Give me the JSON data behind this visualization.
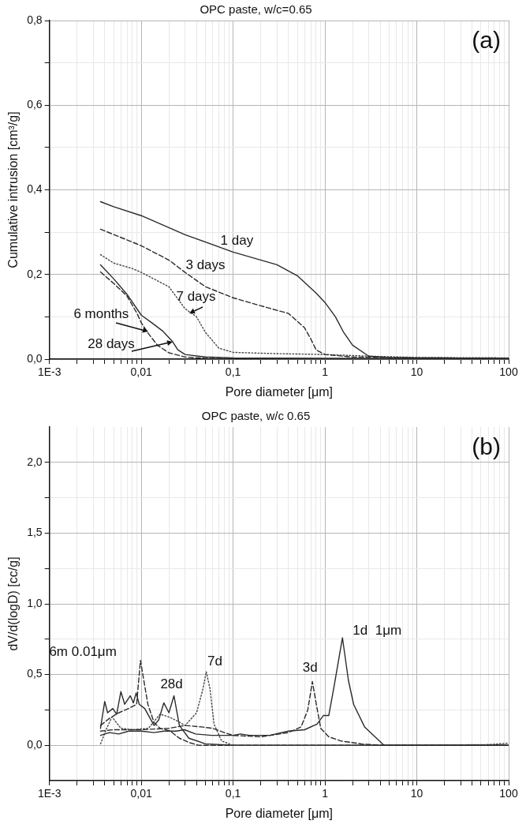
{
  "chart_data": [
    {
      "type": "line",
      "title": "OPC paste, w/c=0.65",
      "xlabel": "Pore diameter [μm]",
      "ylabel": "Cumulative intrusion [cm³/g]",
      "log": "x",
      "grid": true,
      "marker": "none",
      "xlim": [
        0.001,
        100
      ],
      "ylim": [
        0,
        0.8
      ],
      "xticks": [
        {
          "value": 0.001,
          "label": "1E-3"
        },
        {
          "value": 0.002,
          "label": null
        },
        {
          "value": 0.003,
          "label": null
        },
        {
          "value": 0.004,
          "label": null
        },
        {
          "value": 0.005,
          "label": null
        },
        {
          "value": 0.006,
          "label": null
        },
        {
          "value": 0.007,
          "label": null
        },
        {
          "value": 0.008,
          "label": null
        },
        {
          "value": 0.009,
          "label": null
        },
        {
          "value": 0.01,
          "label": "0,01"
        },
        {
          "value": 0.02,
          "label": null
        },
        {
          "value": 0.03,
          "label": null
        },
        {
          "value": 0.04,
          "label": null
        },
        {
          "value": 0.05,
          "label": null
        },
        {
          "value": 0.06,
          "label": null
        },
        {
          "value": 0.07,
          "label": null
        },
        {
          "value": 0.08,
          "label": null
        },
        {
          "value": 0.09,
          "label": null
        },
        {
          "value": 0.1,
          "label": "0,1"
        },
        {
          "value": 0.2,
          "label": null
        },
        {
          "value": 0.3,
          "label": null
        },
        {
          "value": 0.4,
          "label": null
        },
        {
          "value": 0.5,
          "label": null
        },
        {
          "value": 0.6,
          "label": null
        },
        {
          "value": 0.7,
          "label": null
        },
        {
          "value": 0.8,
          "label": null
        },
        {
          "value": 0.9,
          "label": null
        },
        {
          "value": 1,
          "label": "1"
        },
        {
          "value": 2,
          "label": null
        },
        {
          "value": 3,
          "label": null
        },
        {
          "value": 4,
          "label": null
        },
        {
          "value": 5,
          "label": null
        },
        {
          "value": 6,
          "label": null
        },
        {
          "value": 7,
          "label": null
        },
        {
          "value": 8,
          "label": null
        },
        {
          "value": 9,
          "label": null
        },
        {
          "value": 10,
          "label": "10"
        },
        {
          "value": 20,
          "label": null
        },
        {
          "value": 30,
          "label": null
        },
        {
          "value": 40,
          "label": null
        },
        {
          "value": 50,
          "label": null
        },
        {
          "value": 60,
          "label": null
        },
        {
          "value": 70,
          "label": null
        },
        {
          "value": 80,
          "label": null
        },
        {
          "value": 90,
          "label": null
        },
        {
          "value": 100,
          "label": "100"
        }
      ],
      "yticks": [
        {
          "value": 0,
          "label": "0,0"
        },
        {
          "value": 0.1,
          "label": null
        },
        {
          "value": 0.2,
          "label": "0,2"
        },
        {
          "value": 0.3,
          "label": null
        },
        {
          "value": 0.4,
          "label": "0,4"
        },
        {
          "value": 0.5,
          "label": null
        },
        {
          "value": 0.6,
          "label": "0,6"
        },
        {
          "value": 0.7,
          "label": null
        },
        {
          "value": 0.8,
          "label": "0,8"
        }
      ],
      "series": [
        {
          "color": "#2b2b2b",
          "line_style": "solid",
          "x": [
            0.0036,
            0.005,
            0.01,
            0.03,
            0.1,
            0.3,
            0.5,
            0.8,
            1,
            1.3,
            1.6,
            2,
            3,
            5,
            10,
            100
          ],
          "values": [
            0.372,
            0.36,
            0.339,
            0.294,
            0.253,
            0.223,
            0.197,
            0.156,
            0.134,
            0.1,
            0.063,
            0.033,
            0.007,
            0.004,
            0.003,
            0.002
          ]
        },
        {
          "color": "#2b2b2b",
          "line_style": "dashed",
          "x": [
            0.0036,
            0.01,
            0.02,
            0.03,
            0.05,
            0.1,
            0.2,
            0.4,
            0.6,
            0.7,
            0.8,
            1,
            2,
            10,
            100
          ],
          "values": [
            0.307,
            0.268,
            0.234,
            0.205,
            0.171,
            0.145,
            0.126,
            0.108,
            0.074,
            0.048,
            0.022,
            0.011,
            0.005,
            0.003,
            0.002
          ]
        },
        {
          "color": "#444444",
          "line_style": "dotted",
          "x": [
            0.0036,
            0.005,
            0.008,
            0.01,
            0.02,
            0.03,
            0.04,
            0.05,
            0.07,
            0.1,
            0.3,
            1,
            3,
            10,
            100
          ],
          "values": [
            0.247,
            0.227,
            0.214,
            0.205,
            0.171,
            0.119,
            0.1,
            0.063,
            0.026,
            0.016,
            0.013,
            0.011,
            0.007,
            0.004,
            0.003
          ]
        },
        {
          "color": "#2b2b2b",
          "line_style": "solid",
          "x": [
            0.0036,
            0.005,
            0.007,
            0.01,
            0.013,
            0.017,
            0.022,
            0.025,
            0.03,
            0.05,
            0.1,
            1,
            100
          ],
          "values": [
            0.223,
            0.19,
            0.153,
            0.104,
            0.086,
            0.067,
            0.041,
            0.022,
            0.011,
            0.005,
            0.003,
            0.002,
            0.001
          ]
        },
        {
          "color": "#2b2b2b",
          "line_style": "dashed",
          "x": [
            0.0036,
            0.005,
            0.007,
            0.009,
            0.01,
            0.012,
            0.015,
            0.02,
            0.03,
            0.05,
            1,
            100
          ],
          "values": [
            0.206,
            0.179,
            0.149,
            0.108,
            0.086,
            0.06,
            0.033,
            0.015,
            0.005,
            0.002,
            0.001,
            0.001
          ]
        }
      ],
      "annotations": [
        "(a)",
        {
          "text": "1 day",
          "x": 0.11,
          "y": 0.25
        },
        {
          "text": "3 days",
          "x": 0.05,
          "y": 0.17
        },
        {
          "text": "7 days",
          "x": 0.033,
          "y": 0.108
        },
        {
          "text": "6 months",
          "x": 0.012,
          "y": 0.065
        },
        {
          "text": "28 days",
          "x": 0.022,
          "y": 0.041
        }
      ]
    },
    {
      "type": "line",
      "title": "OPC paste, w/c 0.65",
      "xlabel": "Pore diameter [μm]",
      "ylabel": "dV/d(logD) [cc/g]",
      "log": "x",
      "grid": true,
      "marker": "none",
      "xlim": [
        0.001,
        100
      ],
      "ylim": [
        -0.25,
        2.25
      ],
      "xticks": [
        {
          "value": 0.001,
          "label": "1E-3"
        },
        {
          "value": 0.002,
          "label": null
        },
        {
          "value": 0.003,
          "label": null
        },
        {
          "value": 0.004,
          "label": null
        },
        {
          "value": 0.005,
          "label": null
        },
        {
          "value": 0.006,
          "label": null
        },
        {
          "value": 0.007,
          "label": null
        },
        {
          "value": 0.008,
          "label": null
        },
        {
          "value": 0.009,
          "label": null
        },
        {
          "value": 0.01,
          "label": "0,01"
        },
        {
          "value": 0.02,
          "label": null
        },
        {
          "value": 0.03,
          "label": null
        },
        {
          "value": 0.04,
          "label": null
        },
        {
          "value": 0.05,
          "label": null
        },
        {
          "value": 0.06,
          "label": null
        },
        {
          "value": 0.07,
          "label": null
        },
        {
          "value": 0.08,
          "label": null
        },
        {
          "value": 0.09,
          "label": null
        },
        {
          "value": 0.1,
          "label": "0,1"
        },
        {
          "value": 0.2,
          "label": null
        },
        {
          "value": 0.3,
          "label": null
        },
        {
          "value": 0.4,
          "label": null
        },
        {
          "value": 0.5,
          "label": null
        },
        {
          "value": 0.6,
          "label": null
        },
        {
          "value": 0.7,
          "label": null
        },
        {
          "value": 0.8,
          "label": null
        },
        {
          "value": 0.9,
          "label": null
        },
        {
          "value": 1,
          "label": "1"
        },
        {
          "value": 2,
          "label": null
        },
        {
          "value": 3,
          "label": null
        },
        {
          "value": 4,
          "label": null
        },
        {
          "value": 5,
          "label": null
        },
        {
          "value": 6,
          "label": null
        },
        {
          "value": 7,
          "label": null
        },
        {
          "value": 8,
          "label": null
        },
        {
          "value": 9,
          "label": null
        },
        {
          "value": 10,
          "label": "10"
        },
        {
          "value": 20,
          "label": null
        },
        {
          "value": 30,
          "label": null
        },
        {
          "value": 40,
          "label": null
        },
        {
          "value": 50,
          "label": null
        },
        {
          "value": 60,
          "label": null
        },
        {
          "value": 70,
          "label": null
        },
        {
          "value": 80,
          "label": null
        },
        {
          "value": 90,
          "label": null
        },
        {
          "value": 100,
          "label": "100"
        }
      ],
      "yticks": [
        {
          "value": 0,
          "label": "0,0"
        },
        {
          "value": 0.25,
          "label": null
        },
        {
          "value": 0.5,
          "label": "0,5"
        },
        {
          "value": 0.75,
          "label": null
        },
        {
          "value": 1,
          "label": "1,0"
        },
        {
          "value": 1.25,
          "label": null
        },
        {
          "value": 1.5,
          "label": "1,5"
        },
        {
          "value": 1.75,
          "label": null
        },
        {
          "value": 2,
          "label": "2,0"
        }
      ],
      "series": [
        {
          "color": "#2b2b2b",
          "line_style": "solid",
          "x": [
            0.0036,
            0.0045,
            0.0057,
            0.0073,
            0.01,
            0.0138,
            0.0176,
            0.024,
            0.0296,
            0.039,
            0.058,
            0.1,
            0.12,
            0.15,
            0.25,
            0.4,
            0.6,
            0.82,
            0.96,
            1.1,
            1.26,
            1.55,
            1.8,
            2.05,
            2.7,
            4.4,
            10,
            100
          ],
          "values": [
            0.07,
            0.09,
            0.08,
            0.1,
            0.1,
            0.09,
            0.1,
            0.1,
            0.11,
            0.08,
            0.07,
            0.07,
            0.08,
            0.07,
            0.07,
            0.1,
            0.11,
            0.15,
            0.21,
            0.21,
            0.42,
            0.76,
            0.46,
            0.29,
            0.13,
            0.0,
            0.0,
            0.0
          ]
        },
        {
          "color": "#2b2b2b",
          "line_style": "dashed",
          "x": [
            0.0036,
            0.005,
            0.01,
            0.02,
            0.03,
            0.045,
            0.06,
            0.08,
            0.1,
            0.2,
            0.4,
            0.55,
            0.65,
            0.73,
            0.8,
            0.9,
            1.1,
            1.5,
            2.5,
            4,
            100
          ],
          "values": [
            0.1,
            0.11,
            0.11,
            0.12,
            0.14,
            0.13,
            0.12,
            0.09,
            0.07,
            0.06,
            0.09,
            0.13,
            0.25,
            0.45,
            0.3,
            0.12,
            0.06,
            0.03,
            0.01,
            0.0,
            0.0
          ]
        },
        {
          "color": "#444444",
          "line_style": "dotted",
          "x": [
            0.0036,
            0.0042,
            0.0048,
            0.006,
            0.008,
            0.012,
            0.016,
            0.02,
            0.025,
            0.03,
            0.04,
            0.047,
            0.051,
            0.056,
            0.062,
            0.075,
            0.1,
            1,
            10,
            60,
            100
          ],
          "values": [
            0.01,
            0.12,
            0.2,
            0.12,
            0.11,
            0.12,
            0.22,
            0.2,
            0.17,
            0.14,
            0.23,
            0.4,
            0.52,
            0.4,
            0.15,
            0.03,
            0.0,
            0.0,
            0.0,
            0.005,
            0.015
          ]
        },
        {
          "color": "#2b2b2b",
          "line_style": "solid",
          "x": [
            0.0036,
            0.004,
            0.0043,
            0.0049,
            0.0054,
            0.006,
            0.0066,
            0.0076,
            0.0082,
            0.0088,
            0.0095,
            0.0109,
            0.0138,
            0.0155,
            0.0176,
            0.02,
            0.0227,
            0.026,
            0.033,
            0.05,
            0.1,
            100
          ],
          "values": [
            0.12,
            0.31,
            0.23,
            0.26,
            0.22,
            0.38,
            0.29,
            0.35,
            0.3,
            0.37,
            0.29,
            0.26,
            0.14,
            0.18,
            0.3,
            0.23,
            0.35,
            0.14,
            0.05,
            0.01,
            0.0,
            0.0
          ]
        },
        {
          "color": "#2b2b2b",
          "line_style": "dashed",
          "x": [
            0.0036,
            0.0045,
            0.0057,
            0.0073,
            0.0089,
            0.0098,
            0.0104,
            0.0118,
            0.0138,
            0.016,
            0.0207,
            0.026,
            0.033,
            0.042,
            100
          ],
          "values": [
            0.14,
            0.19,
            0.23,
            0.26,
            0.29,
            0.6,
            0.5,
            0.29,
            0.16,
            0.12,
            0.1,
            0.05,
            0.02,
            0.0,
            0.0
          ]
        }
      ],
      "annotations": [
        "(b)",
        {
          "text": "6m 0.01μm",
          "x": 0.0098,
          "y": 0.6
        },
        {
          "text": "28d",
          "x": 0.0227,
          "y": 0.35
        },
        {
          "text": "7d",
          "x": 0.051,
          "y": 0.52
        },
        {
          "text": "3d",
          "x": 0.73,
          "y": 0.45
        },
        {
          "text": "1d  1μm",
          "x": 1.55,
          "y": 0.76
        }
      ]
    }
  ]
}
